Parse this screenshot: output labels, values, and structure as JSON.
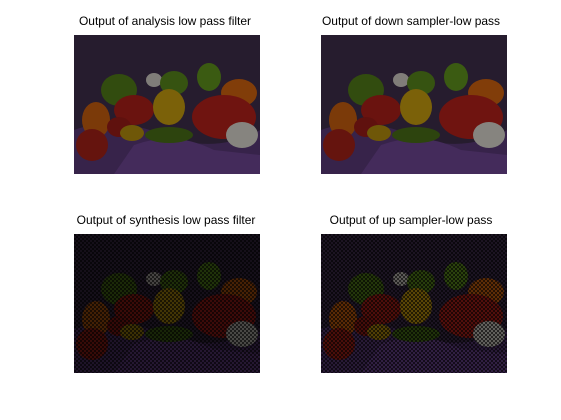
{
  "figure": {
    "background": "#ffffff",
    "panels": [
      {
        "id": "p1",
        "title": "Output of analysis low pass filter",
        "image_label": "peppers-image",
        "brightness": 0.55,
        "pattern": "none"
      },
      {
        "id": "p2",
        "title": "Output of down sampler-low pass",
        "image_label": "peppers-image",
        "brightness": 0.55,
        "pattern": "none"
      },
      {
        "id": "p3",
        "title": "Output of synthesis low pass filter",
        "image_label": "peppers-image",
        "brightness": 0.3,
        "pattern": "checker"
      },
      {
        "id": "p4",
        "title": "Output of up sampler-low pass",
        "image_label": "peppers-image",
        "brightness": 0.4,
        "pattern": "checker"
      }
    ]
  },
  "colors": {
    "backdrop": "#3a2a46",
    "cloth": "#5b3a7a",
    "red_pepper": "#c0231c",
    "green_pepper": "#5a8a1c",
    "yellow_pepper": "#e0b010",
    "orange_pepper": "#e06a10",
    "garlic": "#e8e4dc",
    "tomato": "#b8241a"
  }
}
